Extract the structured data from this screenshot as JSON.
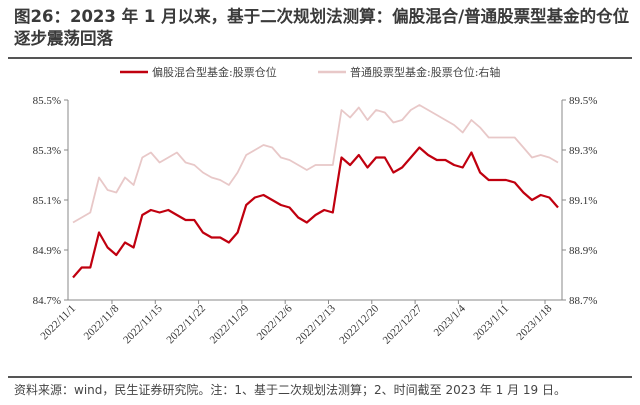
{
  "title": "图26：2023 年 1 月以来，基于二次规划法测算：偏股混合/普通股票型基金的仓位逐步震荡回落",
  "footnote": "资料来源：wind，民生证券研究院。注：1、基于二次规划法测算；2、时间截至 2023 年 1 月 19 日。",
  "chart_data": {
    "type": "line",
    "title": "",
    "grid": false,
    "legend_position": "top",
    "x": [
      "2022/11/1",
      "2022/11/2",
      "2022/11/3",
      "2022/11/4",
      "2022/11/7",
      "2022/11/8",
      "2022/11/9",
      "2022/11/10",
      "2022/11/11",
      "2022/11/14",
      "2022/11/15",
      "2022/11/16",
      "2022/11/17",
      "2022/11/18",
      "2022/11/21",
      "2022/11/22",
      "2022/11/23",
      "2022/11/24",
      "2022/11/25",
      "2022/11/28",
      "2022/11/29",
      "2022/11/30",
      "2022/12/1",
      "2022/12/2",
      "2022/12/5",
      "2022/12/6",
      "2022/12/7",
      "2022/12/8",
      "2022/12/9",
      "2022/12/12",
      "2022/12/13",
      "2022/12/14",
      "2022/12/15",
      "2022/12/16",
      "2022/12/19",
      "2022/12/20",
      "2022/12/21",
      "2022/12/22",
      "2022/12/23",
      "2022/12/26",
      "2022/12/27",
      "2022/12/28",
      "2022/12/29",
      "2022/12/30",
      "2023/1/3",
      "2023/1/4",
      "2023/1/5",
      "2023/1/6",
      "2023/1/9",
      "2023/1/10",
      "2023/1/11",
      "2023/1/12",
      "2023/1/13",
      "2023/1/16",
      "2023/1/17",
      "2023/1/18",
      "2023/1/19"
    ],
    "x_tick_labels": [
      "2022/11/1",
      "2022/11/8",
      "2022/11/15",
      "2022/11/22",
      "2022/11/29",
      "2022/12/6",
      "2022/12/13",
      "2022/12/20",
      "2022/12/27",
      "2023/1/4",
      "2023/1/11",
      "2023/1/18"
    ],
    "y_left": {
      "ylim": [
        84.7,
        85.5
      ],
      "tick_labels": [
        "84.7%",
        "84.9%",
        "85.1%",
        "85.3%",
        "85.5%"
      ],
      "ticks": [
        84.7,
        84.9,
        85.1,
        85.3,
        85.5
      ]
    },
    "y_right": {
      "ylim": [
        88.7,
        89.5
      ],
      "tick_labels": [
        "88.7%",
        "88.9%",
        "89.1%",
        "89.3%",
        "89.5%"
      ],
      "ticks": [
        88.7,
        88.9,
        89.1,
        89.3,
        89.5
      ]
    },
    "series": [
      {
        "name": "偏股混合型基金:股票仓位",
        "axis": "left",
        "color": "#c0000f",
        "values": [
          84.79,
          84.83,
          84.83,
          84.97,
          84.91,
          84.88,
          84.93,
          84.91,
          85.04,
          85.06,
          85.05,
          85.06,
          85.04,
          85.02,
          85.02,
          84.97,
          84.95,
          84.95,
          84.93,
          84.97,
          85.08,
          85.11,
          85.12,
          85.1,
          85.08,
          85.07,
          85.03,
          85.01,
          85.04,
          85.06,
          85.05,
          85.27,
          85.24,
          85.28,
          85.23,
          85.27,
          85.27,
          85.21,
          85.23,
          85.27,
          85.31,
          85.28,
          85.26,
          85.26,
          85.24,
          85.23,
          85.29,
          85.21,
          85.18,
          85.18,
          85.18,
          85.17,
          85.13,
          85.1,
          85.12,
          85.11,
          85.07
        ]
      },
      {
        "name": "普通股票型基金:股票仓位:右轴",
        "axis": "right",
        "color": "#e8c8c8",
        "values": [
          89.01,
          89.03,
          89.05,
          89.19,
          89.14,
          89.13,
          89.19,
          89.16,
          89.27,
          89.29,
          89.25,
          89.27,
          89.29,
          89.25,
          89.24,
          89.21,
          89.19,
          89.18,
          89.16,
          89.21,
          89.28,
          89.3,
          89.32,
          89.31,
          89.27,
          89.26,
          89.24,
          89.22,
          89.24,
          89.24,
          89.24,
          89.46,
          89.43,
          89.47,
          89.42,
          89.46,
          89.45,
          89.41,
          89.42,
          89.46,
          89.48,
          89.46,
          89.44,
          89.42,
          89.4,
          89.37,
          89.42,
          89.39,
          89.35,
          89.35,
          89.35,
          89.35,
          89.31,
          89.27,
          89.28,
          89.27,
          89.25
        ]
      }
    ]
  }
}
